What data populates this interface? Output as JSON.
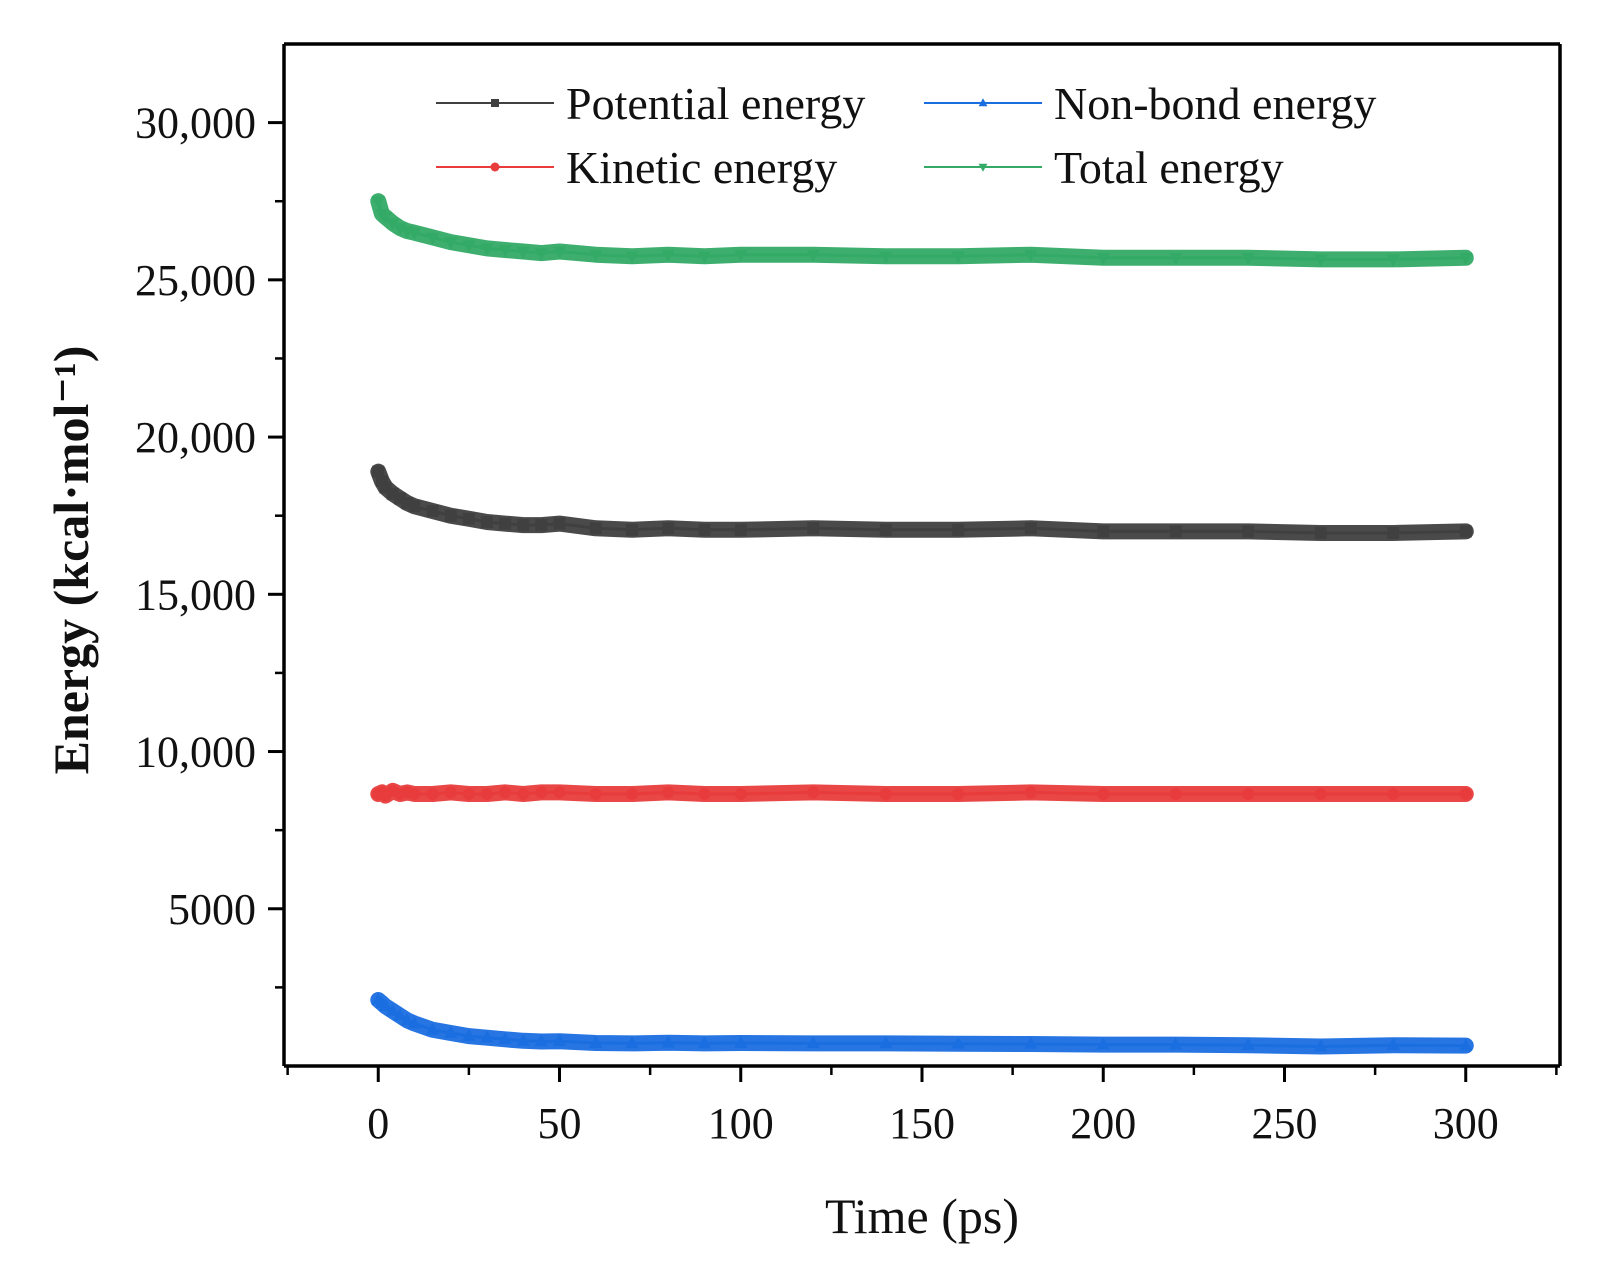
{
  "chart_data": {
    "type": "line",
    "title": "",
    "xlabel": "Time (ps)",
    "ylabel": "Energy (kcal·mol⁻¹)",
    "xlim": [
      -26,
      326
    ],
    "ylim": [
      0,
      32500
    ],
    "x_ticks": [
      0,
      50,
      100,
      150,
      200,
      250,
      300
    ],
    "x_tick_labels": [
      "0",
      "50",
      "100",
      "150",
      "200",
      "250",
      "300"
    ],
    "y_ticks": [
      5000,
      10000,
      15000,
      20000,
      25000,
      30000
    ],
    "y_tick_labels": [
      "5000",
      "10,000",
      "15,000",
      "20,000",
      "25,000",
      "30,000"
    ],
    "grid": false,
    "legend_position": "top",
    "x": [
      0,
      1,
      2,
      4,
      6,
      8,
      10,
      15,
      20,
      25,
      30,
      35,
      40,
      45,
      50,
      60,
      70,
      80,
      90,
      100,
      120,
      140,
      160,
      180,
      200,
      220,
      240,
      260,
      280,
      300
    ],
    "series": [
      {
        "name": "Potential energy",
        "color": "#404040",
        "marker": "square",
        "values": [
          18900,
          18600,
          18400,
          18200,
          18050,
          17900,
          17800,
          17650,
          17500,
          17400,
          17300,
          17250,
          17200,
          17200,
          17250,
          17100,
          17050,
          17100,
          17050,
          17050,
          17100,
          17050,
          17050,
          17100,
          17000,
          17000,
          17000,
          16950,
          16950,
          17000
        ]
      },
      {
        "name": "Non-bond energy",
        "color": "#1a6ee0",
        "marker": "triangle-up",
        "values": [
          2100,
          2000,
          1900,
          1750,
          1600,
          1450,
          1350,
          1150,
          1050,
          950,
          900,
          850,
          800,
          780,
          790,
          730,
          720,
          740,
          720,
          730,
          720,
          720,
          710,
          700,
          680,
          680,
          660,
          620,
          660,
          650
        ]
      },
      {
        "name": "Kinetic energy",
        "color": "#e83c3c",
        "marker": "circle",
        "values": [
          8650,
          8700,
          8600,
          8750,
          8650,
          8700,
          8650,
          8650,
          8700,
          8650,
          8650,
          8700,
          8650,
          8700,
          8700,
          8650,
          8650,
          8700,
          8650,
          8650,
          8700,
          8650,
          8650,
          8700,
          8650,
          8650,
          8650,
          8650,
          8650,
          8650
        ]
      },
      {
        "name": "Total energy",
        "color": "#33aa66",
        "marker": "triangle-down",
        "values": [
          27500,
          27100,
          27000,
          26800,
          26650,
          26550,
          26500,
          26350,
          26200,
          26100,
          26000,
          25950,
          25900,
          25850,
          25900,
          25800,
          25750,
          25800,
          25750,
          25800,
          25800,
          25750,
          25750,
          25800,
          25700,
          25700,
          25700,
          25650,
          25650,
          25700
        ]
      }
    ]
  }
}
